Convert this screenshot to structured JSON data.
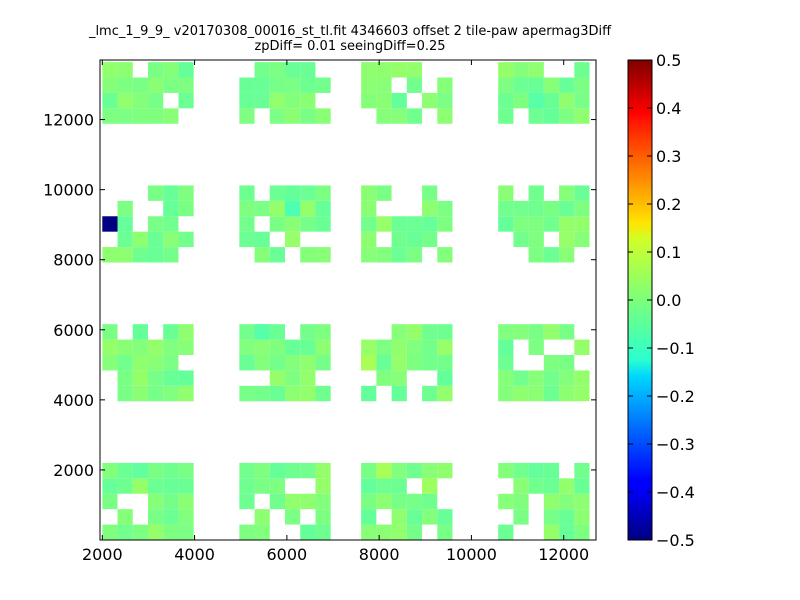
{
  "chart_data": {
    "type": "heatmap",
    "title_line1": "_lmc_1_9_9_ v20170308_00016_st_tl.fit 4346603 offset 2 tile-paw apermag3Diff",
    "title_line2": "zpDiff= 0.01 seeingDiff=0.25",
    "xlim": [
      1950,
      12700
    ],
    "ylim": [
      0,
      13700
    ],
    "xticks": [
      2000,
      4000,
      6000,
      8000,
      10000,
      12000
    ],
    "yticks": [
      2000,
      4000,
      6000,
      8000,
      10000,
      12000
    ],
    "xtick_labels": [
      "2000",
      "4000",
      "6000",
      "8000",
      "10000",
      "12000"
    ],
    "ytick_labels": [
      "2000",
      "4000",
      "6000",
      "8000",
      "10000",
      "12000"
    ],
    "colorbar": {
      "colormap": "jet",
      "min": -0.5,
      "max": 0.5,
      "ticks": [
        -0.5,
        -0.4,
        -0.3,
        -0.2,
        -0.1,
        0.0,
        0.1,
        0.2,
        0.3,
        0.4,
        0.5
      ],
      "tick_labels": [
        "−0.5",
        "−0.4",
        "−0.3",
        "−0.2",
        "−0.1",
        "0.0",
        "0.1",
        "0.2",
        "0.3",
        "0.4",
        "0.5"
      ]
    },
    "grid": false,
    "cell_size_approx": [
      330,
      440
    ],
    "x_bins_start": 2000,
    "y_bins_start": 0,
    "default_value": 0.0,
    "approx_note_values": "most cells near 0.0 (green); a few slightly negative cyan cells; one cell at about -0.5",
    "occupied_bins": {
      "x_groups": [
        [
          0,
          5
        ],
        [
          9,
          14
        ],
        [
          17,
          22
        ],
        [
          26,
          31
        ]
      ],
      "y_groups": [
        [
          0,
          4
        ],
        [
          9,
          13
        ],
        [
          18,
          22
        ],
        [
          27,
          30
        ]
      ]
    },
    "special_cells": [
      {
        "x": 2165,
        "y": 8855,
        "value": -0.5
      },
      {
        "x": 6045,
        "y": 9295,
        "value": -0.05
      },
      {
        "x": 5385,
        "y": 5775,
        "value": -0.04
      },
      {
        "x": 8035,
        "y": 1760,
        "value": 0.04
      },
      {
        "x": 11545,
        "y": 12540,
        "value": -0.04
      },
      {
        "x": 7705,
        "y": 4840,
        "value": 0.04
      },
      {
        "x": 9025,
        "y": 1540,
        "value": 0.03
      },
      {
        "x": 2825,
        "y": 1980,
        "value": -0.03
      }
    ]
  }
}
